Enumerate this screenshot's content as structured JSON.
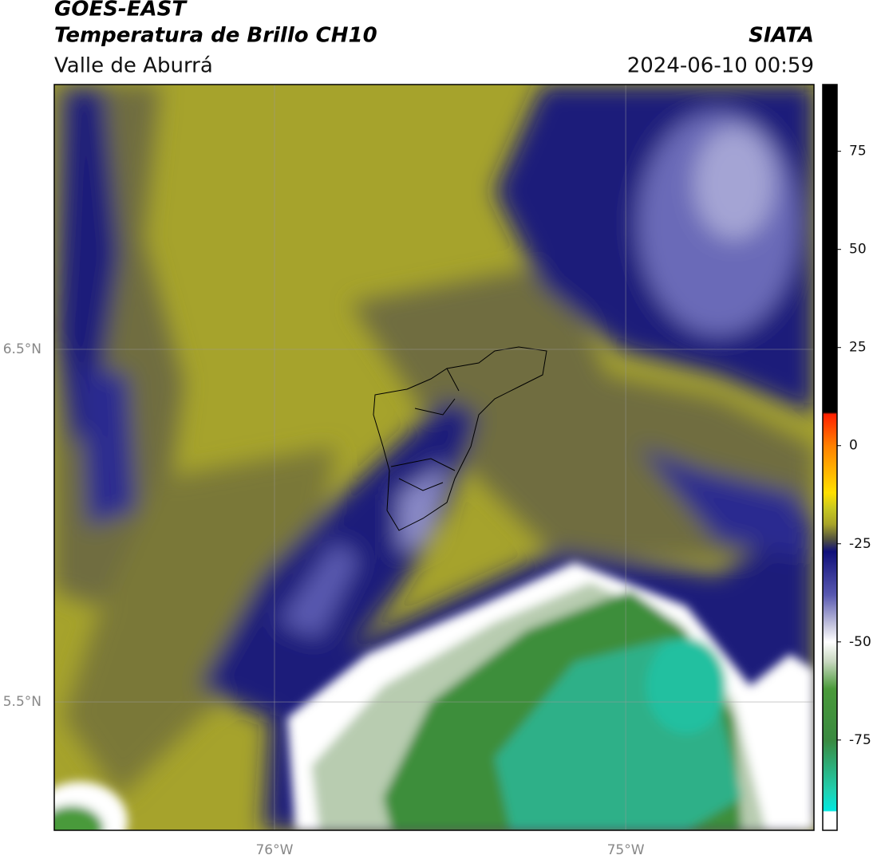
{
  "header": {
    "title": "GOES-EAST",
    "subtitle": "Temperatura de Brillo CH10",
    "region": "Valle de Aburrá",
    "source": "SIATA",
    "timestamp": "2024-06-10 00:59"
  },
  "map": {
    "xlim": [
      -76.627,
      -74.464
    ],
    "ylim": [
      5.136,
      7.251
    ],
    "xticks": [
      {
        "value": -76,
        "label": "76°W"
      },
      {
        "value": -75,
        "label": "75°W"
      }
    ],
    "yticks": [
      {
        "value": 6.5,
        "label": "6.5°N"
      },
      {
        "value": 5.5,
        "label": "5.5°N"
      }
    ],
    "grid": true
  },
  "colorbar": {
    "lim": [
      -98,
      92
    ],
    "ticks": [
      75,
      50,
      25,
      0,
      -25,
      -50,
      -75
    ],
    "stops": [
      {
        "value": 92,
        "color": "#000000"
      },
      {
        "value": 8.5,
        "color": "#000000"
      },
      {
        "value": 8,
        "color": "#ff2000"
      },
      {
        "value": 0,
        "color": "#ff8000"
      },
      {
        "value": -12,
        "color": "#ffe000"
      },
      {
        "value": -16,
        "color": "#c8c820"
      },
      {
        "value": -20,
        "color": "#a8a428"
      },
      {
        "value": -24,
        "color": "#505040"
      },
      {
        "value": -27,
        "color": "#10107a"
      },
      {
        "value": -38,
        "color": "#5858b0"
      },
      {
        "value": -46,
        "color": "#c8c8e0"
      },
      {
        "value": -50,
        "color": "#ffffff"
      },
      {
        "value": -55,
        "color": "#c8d8c0"
      },
      {
        "value": -62,
        "color": "#4a9a3a"
      },
      {
        "value": -75,
        "color": "#3a8a40"
      },
      {
        "value": -88,
        "color": "#20d0b0"
      },
      {
        "value": -93,
        "color": "#00e8e0"
      },
      {
        "value": -93.3,
        "color": "#ffffff"
      },
      {
        "value": -98,
        "color": "#ffffff"
      }
    ]
  }
}
